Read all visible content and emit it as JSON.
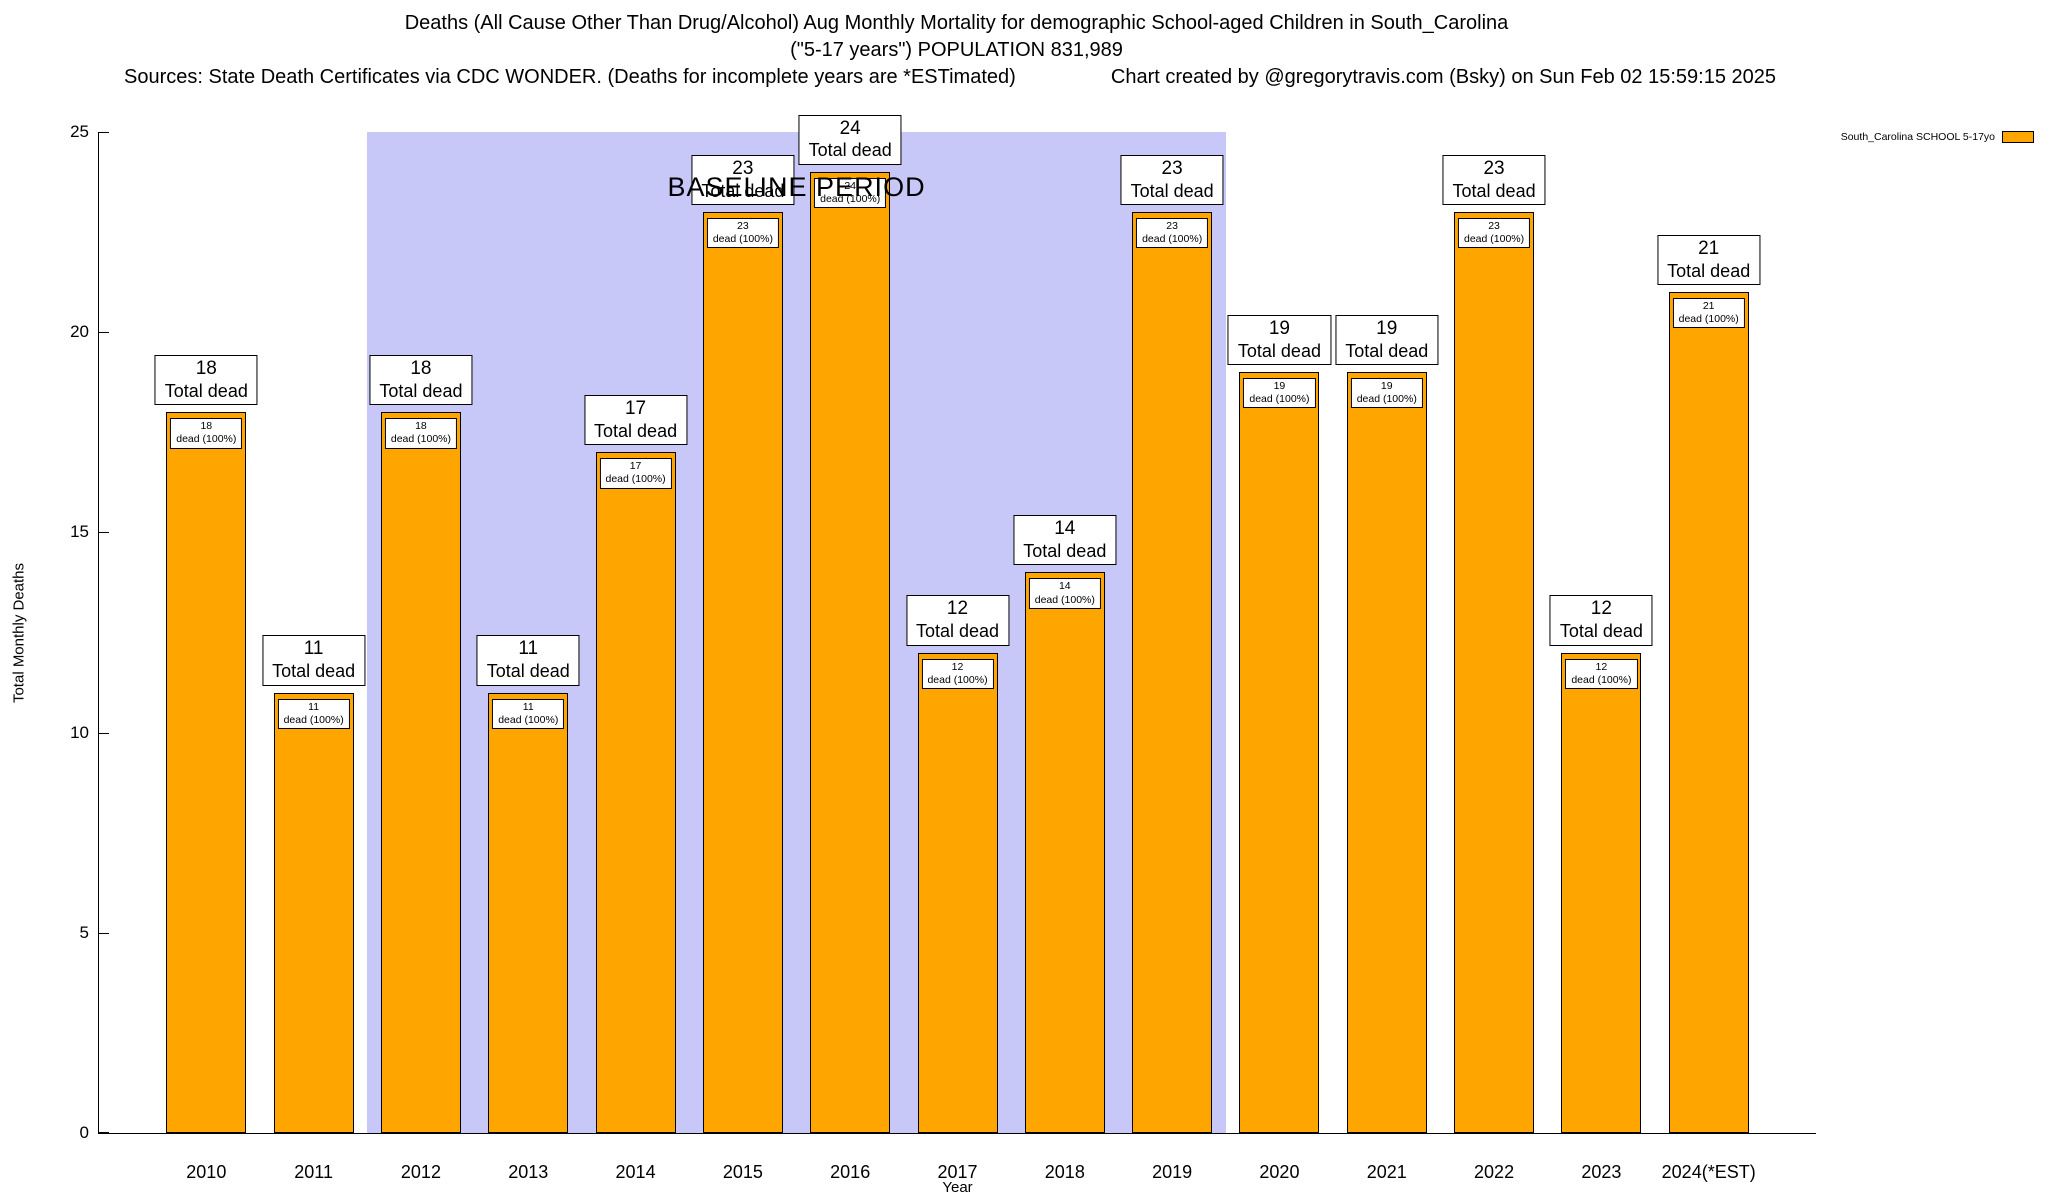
{
  "header": {
    "title_line1": "Deaths (All Cause Other Than Drug/Alcohol) Aug Monthly Mortality for demographic School-aged Children in South_Carolina",
    "title_line2": "(\"5-17 years\") POPULATION 831,989",
    "sources": "Sources: State Death Certificates via CDC WONDER. (Deaths for incomplete years are *ESTimated)",
    "credit": "Chart created by @gregorytravis.com (Bsky) on Sun Feb 02 15:59:15 2025"
  },
  "legend": {
    "label": "South_Carolina SCHOOL 5-17yo",
    "swatch_color": "#FFA500"
  },
  "chart_data": {
    "type": "bar",
    "title": "Deaths (All Cause Other Than Drug/Alcohol) Aug Monthly Mortality for demographic School-aged Children in South_Carolina (\"5-17 years\") POPULATION 831,989",
    "xlabel": "Year",
    "ylabel": "Total Monthly Deaths",
    "ylim": [
      0,
      25
    ],
    "yticks": [
      0,
      5,
      10,
      15,
      20,
      25
    ],
    "grid": false,
    "legend_position": "top-right",
    "categories": [
      "2010",
      "2011",
      "2012",
      "2013",
      "2014",
      "2015",
      "2016",
      "2017",
      "2018",
      "2019",
      "2020",
      "2021",
      "2022",
      "2023",
      "2024(*EST)"
    ],
    "values": [
      18,
      11,
      18,
      11,
      17,
      23,
      24,
      12,
      14,
      23,
      19,
      19,
      23,
      12,
      21
    ],
    "bar_color": "#FFA500",
    "bar_border_color": "#000000",
    "annotations": {
      "total_label_suffix": "Total dead",
      "small_label_suffix": "dead (100%)"
    },
    "baseline": {
      "label": "BASELINE PERIOD",
      "start_category": "2012",
      "end_category": "2019",
      "color": "#c8c8f8"
    }
  }
}
